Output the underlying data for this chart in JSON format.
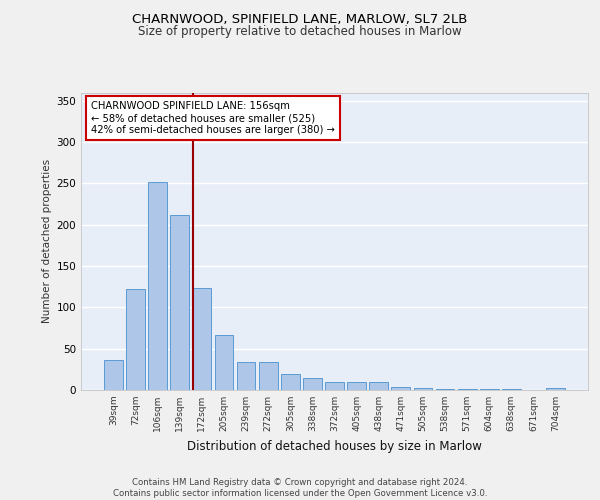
{
  "title_line1": "CHARNWOOD, SPINFIELD LANE, MARLOW, SL7 2LB",
  "title_line2": "Size of property relative to detached houses in Marlow",
  "xlabel": "Distribution of detached houses by size in Marlow",
  "ylabel": "Number of detached properties",
  "categories": [
    "39sqm",
    "72sqm",
    "106sqm",
    "139sqm",
    "172sqm",
    "205sqm",
    "239sqm",
    "272sqm",
    "305sqm",
    "338sqm",
    "372sqm",
    "405sqm",
    "438sqm",
    "471sqm",
    "505sqm",
    "538sqm",
    "571sqm",
    "604sqm",
    "638sqm",
    "671sqm",
    "704sqm"
  ],
  "values": [
    36,
    122,
    252,
    212,
    124,
    67,
    34,
    34,
    19,
    14,
    10,
    10,
    10,
    4,
    2,
    1,
    1,
    1,
    1,
    0,
    3
  ],
  "bar_color": "#aec6e8",
  "bar_edge_color": "#5b9bd5",
  "background_color": "#e8eef8",
  "grid_color": "#ffffff",
  "vline_x": 3.62,
  "vline_color": "#990000",
  "annotation_text": "CHARNWOOD SPINFIELD LANE: 156sqm\n← 58% of detached houses are smaller (525)\n42% of semi-detached houses are larger (380) →",
  "annotation_box_color": "#ffffff",
  "annotation_box_edge": "#cc0000",
  "footer_text": "Contains HM Land Registry data © Crown copyright and database right 2024.\nContains public sector information licensed under the Open Government Licence v3.0.",
  "ylim": [
    0,
    360
  ],
  "yticks": [
    0,
    50,
    100,
    150,
    200,
    250,
    300,
    350
  ],
  "fig_bg": "#f0f0f0"
}
